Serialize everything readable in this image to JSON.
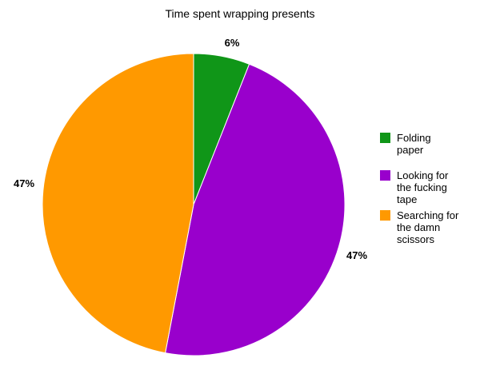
{
  "chart_data": {
    "type": "pie",
    "title": "Time spent wrapping presents",
    "categories": [
      "Folding paper",
      "Looking for the fucking tape",
      "Searching for the damn scissors"
    ],
    "values": [
      6,
      47,
      47
    ],
    "value_labels": [
      "6%",
      "47%",
      "47%"
    ],
    "colors": [
      "#109618",
      "#9900cc",
      "#ff9900"
    ],
    "legend_position": "right",
    "legend_lines": [
      [
        "Folding",
        "paper"
      ],
      [
        "Looking for",
        "the fucking",
        "tape"
      ],
      [
        "Searching for",
        "the damn",
        "scissors"
      ]
    ]
  }
}
